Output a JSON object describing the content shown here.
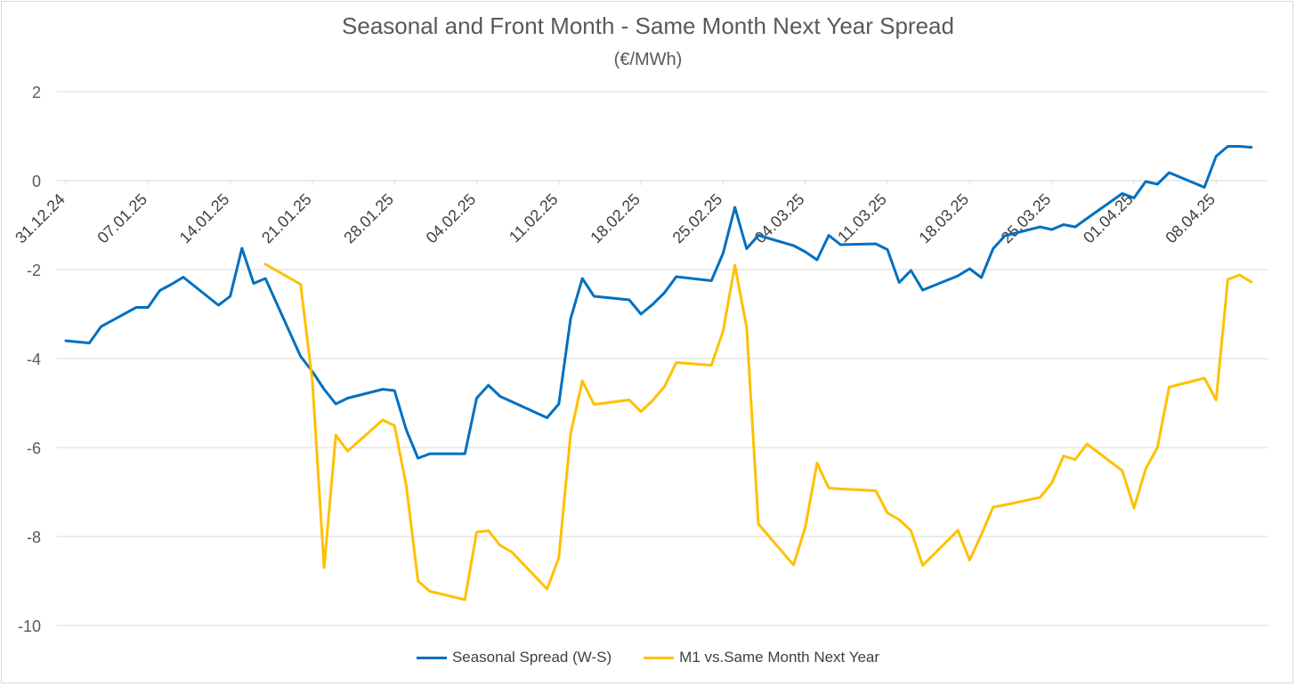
{
  "chart_data": {
    "type": "line",
    "title": "Seasonal and Front Month - Same Month Next Year Spread",
    "subtitle": "(€/MWh)",
    "ylim": [
      -10,
      2
    ],
    "yticks": [
      2,
      0,
      -2,
      -4,
      -6,
      -8,
      -10
    ],
    "xlim": [
      "2024-12-31",
      "2025-04-12"
    ],
    "xtick_labels": [
      "31.12.24",
      "07.01.25",
      "14.01.25",
      "21.01.25",
      "28.01.25",
      "04.02.25",
      "11.02.25",
      "18.02.25",
      "25.02.25",
      "04.03.25",
      "11.03.25",
      "18.03.25",
      "25.03.25",
      "01.04.25",
      "08.04.25"
    ],
    "xtick_dates": [
      "2024-12-31",
      "2025-01-07",
      "2025-01-14",
      "2025-01-21",
      "2025-01-28",
      "2025-02-04",
      "2025-02-11",
      "2025-02-18",
      "2025-02-25",
      "2025-03-04",
      "2025-03-11",
      "2025-03-18",
      "2025-03-25",
      "2025-04-01",
      "2025-04-08"
    ],
    "grid": "horizontal",
    "legend_position": "bottom",
    "series": [
      {
        "name": "Seasonal Spread (W-S)",
        "color": "#0070C0",
        "x": [
          "2024-12-31",
          "2025-01-02",
          "2025-01-03",
          "2025-01-06",
          "2025-01-07",
          "2025-01-08",
          "2025-01-09",
          "2025-01-10",
          "2025-01-13",
          "2025-01-14",
          "2025-01-15",
          "2025-01-16",
          "2025-01-17",
          "2025-01-20",
          "2025-01-21",
          "2025-01-22",
          "2025-01-23",
          "2025-01-24",
          "2025-01-27",
          "2025-01-28",
          "2025-01-29",
          "2025-01-30",
          "2025-01-31",
          "2025-02-03",
          "2025-02-04",
          "2025-02-05",
          "2025-02-06",
          "2025-02-07",
          "2025-02-10",
          "2025-02-11",
          "2025-02-12",
          "2025-02-13",
          "2025-02-14",
          "2025-02-17",
          "2025-02-18",
          "2025-02-19",
          "2025-02-20",
          "2025-02-21",
          "2025-02-24",
          "2025-02-25",
          "2025-02-26",
          "2025-02-27",
          "2025-02-28",
          "2025-03-03",
          "2025-03-04",
          "2025-03-05",
          "2025-03-06",
          "2025-03-07",
          "2025-03-10",
          "2025-03-11",
          "2025-03-12",
          "2025-03-13",
          "2025-03-14",
          "2025-03-17",
          "2025-03-18",
          "2025-03-19",
          "2025-03-20",
          "2025-03-21",
          "2025-03-24",
          "2025-03-25",
          "2025-03-26",
          "2025-03-27",
          "2025-03-28",
          "2025-03-31",
          "2025-04-01",
          "2025-04-02",
          "2025-04-03",
          "2025-04-04",
          "2025-04-07",
          "2025-04-08",
          "2025-04-09",
          "2025-04-10",
          "2025-04-11"
        ],
        "values": [
          -3.6,
          -3.65,
          -3.28,
          -2.85,
          -2.85,
          -2.47,
          -2.33,
          -2.17,
          -2.8,
          -2.6,
          -1.52,
          -2.31,
          -2.2,
          -3.95,
          -4.29,
          -4.69,
          -5.02,
          -4.89,
          -4.69,
          -4.72,
          -5.6,
          -6.24,
          -6.14,
          -6.14,
          -4.89,
          -4.6,
          -4.85,
          -4.97,
          -5.33,
          -5.02,
          -3.11,
          -2.2,
          -2.6,
          -2.68,
          -3.0,
          -2.78,
          -2.52,
          -2.16,
          -2.25,
          -1.63,
          -0.6,
          -1.53,
          -1.23,
          -1.46,
          -1.6,
          -1.78,
          -1.23,
          -1.44,
          -1.42,
          -1.55,
          -2.29,
          -2.02,
          -2.46,
          -2.14,
          -1.98,
          -2.18,
          -1.53,
          -1.24,
          -1.04,
          -1.1,
          -0.99,
          -1.04,
          -0.85,
          -0.29,
          -0.39,
          -0.02,
          -0.08,
          0.18,
          -0.15,
          0.55,
          0.77,
          0.77,
          0.75
        ]
      },
      {
        "name": "M1 vs.Same Month Next Year",
        "color": "#FFC000",
        "x": [
          "2025-01-17",
          "2025-01-20",
          "2025-01-21",
          "2025-01-22",
          "2025-01-23",
          "2025-01-24",
          "2025-01-27",
          "2025-01-28",
          "2025-01-29",
          "2025-01-30",
          "2025-01-31",
          "2025-02-03",
          "2025-02-04",
          "2025-02-05",
          "2025-02-06",
          "2025-02-07",
          "2025-02-10",
          "2025-02-11",
          "2025-02-12",
          "2025-02-13",
          "2025-02-14",
          "2025-02-17",
          "2025-02-18",
          "2025-02-19",
          "2025-02-20",
          "2025-02-21",
          "2025-02-24",
          "2025-02-25",
          "2025-02-26",
          "2025-02-27",
          "2025-02-28",
          "2025-03-03",
          "2025-03-04",
          "2025-03-05",
          "2025-03-06",
          "2025-03-07",
          "2025-03-10",
          "2025-03-11",
          "2025-03-12",
          "2025-03-13",
          "2025-03-14",
          "2025-03-17",
          "2025-03-18",
          "2025-03-19",
          "2025-03-20",
          "2025-03-21",
          "2025-03-24",
          "2025-03-25",
          "2025-03-26",
          "2025-03-27",
          "2025-03-28",
          "2025-03-31",
          "2025-04-01",
          "2025-04-02",
          "2025-04-03",
          "2025-04-04",
          "2025-04-07",
          "2025-04-08",
          "2025-04-09",
          "2025-04-10",
          "2025-04-11"
        ],
        "values": [
          -1.88,
          -2.33,
          -4.5,
          -8.7,
          -5.72,
          -6.08,
          -5.38,
          -5.51,
          -6.85,
          -9.0,
          -9.23,
          -9.42,
          -7.9,
          -7.87,
          -8.2,
          -8.35,
          -9.18,
          -8.48,
          -5.7,
          -4.5,
          -5.03,
          -4.93,
          -5.19,
          -4.94,
          -4.63,
          -4.09,
          -4.15,
          -3.38,
          -1.9,
          -3.3,
          -7.72,
          -8.64,
          -7.79,
          -6.35,
          -6.91,
          -6.93,
          -6.97,
          -7.47,
          -7.62,
          -7.87,
          -8.65,
          -7.86,
          -8.53,
          -7.96,
          -7.34,
          -7.29,
          -7.12,
          -6.8,
          -6.19,
          -6.27,
          -5.92,
          -6.52,
          -7.36,
          -6.48,
          -6.0,
          -4.64,
          -4.44,
          -4.93,
          -2.22,
          -2.12,
          -2.28
        ]
      }
    ]
  }
}
